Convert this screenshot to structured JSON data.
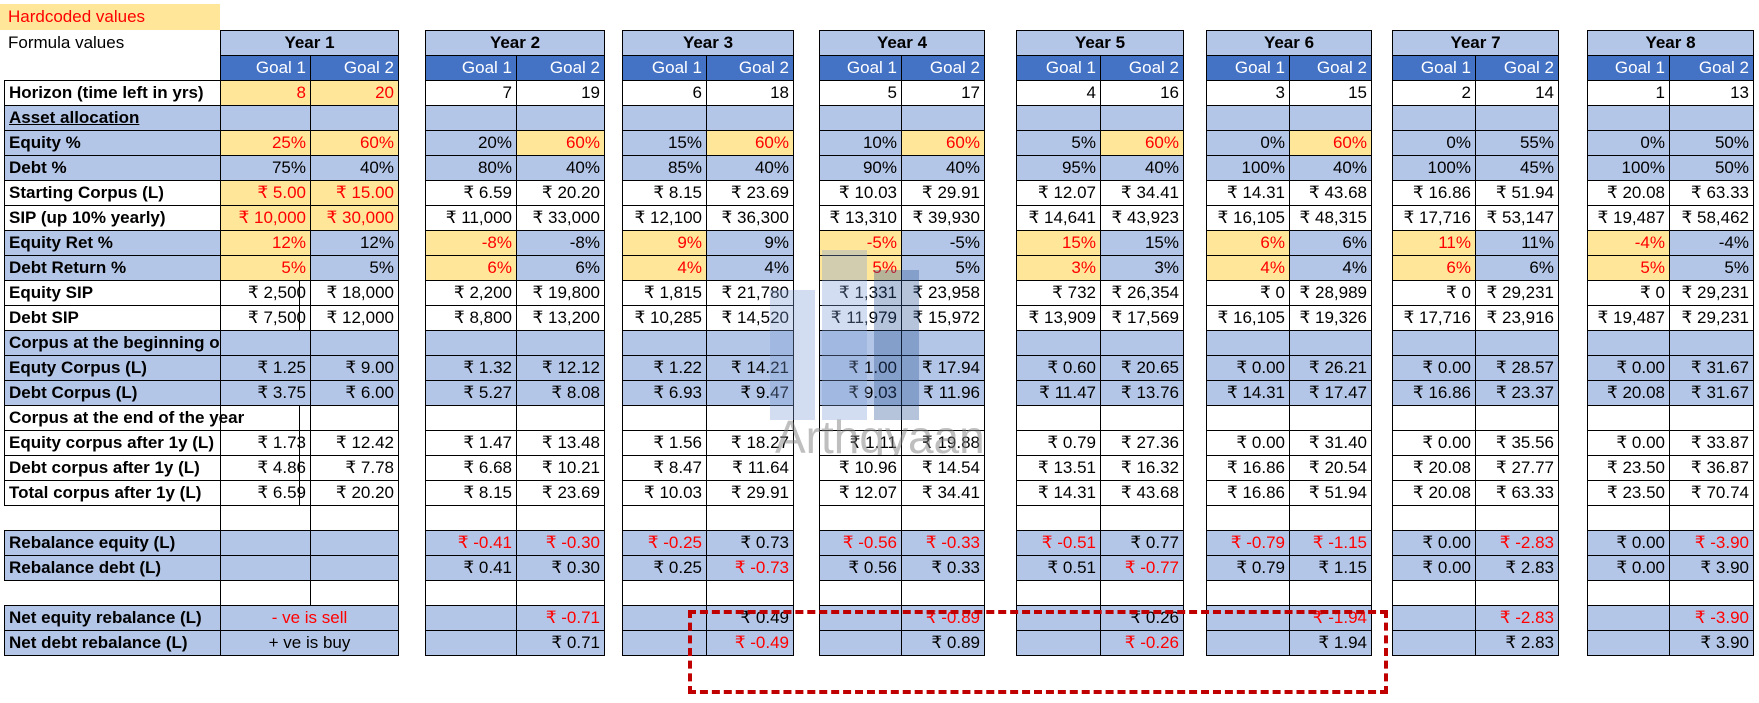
{
  "legend": {
    "hardcoded": "Hardcoded values",
    "formula": "Formula values"
  },
  "goal_headers": [
    "Goal 1",
    "Goal 2"
  ],
  "row_labels": [
    {
      "text": "Horizon (time left in yrs)",
      "style": "white"
    },
    {
      "text": "Asset allocation",
      "style": "blue-ul"
    },
    {
      "text": "Equity %",
      "style": "blue"
    },
    {
      "text": "Debt %",
      "style": "blue"
    },
    {
      "text": "Starting Corpus (L)",
      "style": "white"
    },
    {
      "text": "SIP (up 10% yearly)",
      "style": "white"
    },
    {
      "text": "Equity Ret %",
      "style": "blue"
    },
    {
      "text": "Debt Return %",
      "style": "blue"
    },
    {
      "text": "Equity SIP",
      "style": "white"
    },
    {
      "text": "Debt SIP",
      "style": "white"
    },
    {
      "text": "Corpus at the beginning of the year",
      "style": "blue"
    },
    {
      "text": "Equty Corpus (L)",
      "style": "blue"
    },
    {
      "text": "Debt Corpus (L)",
      "style": "blue"
    },
    {
      "text": "Corpus at the end  of the year",
      "style": "white"
    },
    {
      "text": "Equity corpus after 1y (L)",
      "style": "white"
    },
    {
      "text": "Debt corpus after 1y (L)",
      "style": "white"
    },
    {
      "text": "Total corpus after 1y (L)",
      "style": "white"
    },
    {
      "text": "",
      "style": "white"
    },
    {
      "text": "Rebalance equity (L)",
      "style": "blue"
    },
    {
      "text": "Rebalance debt (L)",
      "style": "blue"
    },
    {
      "text": "",
      "style": "white"
    },
    {
      "text": "Net equity rebalance (L)",
      "style": "blue"
    },
    {
      "text": "Net debt rebalance (L)",
      "style": "blue"
    }
  ],
  "year1_notes": {
    "sell": "- ve is sell",
    "buy": "+ ve is buy"
  },
  "years": [
    {
      "title": "Year 1",
      "g1": [
        "8",
        "",
        "25%",
        "75%",
        "₹ 5.00",
        "₹ 10,000",
        "12%",
        "5%",
        "₹ 2,500",
        "₹ 7,500",
        "",
        "₹ 1.25",
        "₹ 3.75",
        "",
        "₹ 1.73",
        "₹ 4.86",
        "₹ 6.59",
        "",
        "",
        "",
        "",
        "",
        ""
      ],
      "g2": [
        "20",
        "",
        "60%",
        "40%",
        "₹ 15.00",
        "₹ 30,000",
        "12%",
        "5%",
        "₹ 18,000",
        "₹ 12,000",
        "",
        "₹ 9.00",
        "₹ 6.00",
        "",
        "₹ 12.42",
        "₹ 7.78",
        "₹ 20.20",
        "",
        "",
        "",
        "",
        "",
        ""
      ],
      "hc1": [
        0,
        2,
        4,
        5,
        6,
        7
      ],
      "hc2": [
        0,
        2,
        4,
        5
      ],
      "neg1": [],
      "neg2": []
    },
    {
      "title": "Year 2",
      "g1": [
        "7",
        "",
        "20%",
        "80%",
        "₹ 6.59",
        "₹ 11,000",
        "-8%",
        "6%",
        "₹ 2,200",
        "₹ 8,800",
        "",
        "₹ 1.32",
        "₹ 5.27",
        "",
        "₹ 1.47",
        "₹ 6.68",
        "₹ 8.15",
        "",
        "₹ -0.41",
        "₹ 0.41",
        "",
        "",
        ""
      ],
      "g2": [
        "19",
        "",
        "60%",
        "40%",
        "₹ 20.20",
        "₹ 33,000",
        "-8%",
        "6%",
        "₹ 19,800",
        "₹ 13,200",
        "",
        "₹ 12.12",
        "₹ 8.08",
        "",
        "₹ 13.48",
        "₹ 10.21",
        "₹ 23.69",
        "",
        "₹ -0.30",
        "₹ 0.30",
        "",
        "₹ -0.71",
        "₹ 0.71"
      ],
      "hc1": [
        6,
        7
      ],
      "hc2": [
        2
      ],
      "neg1": [
        6,
        18
      ],
      "neg2": [
        18,
        21
      ]
    },
    {
      "title": "Year 3",
      "g1": [
        "6",
        "",
        "15%",
        "85%",
        "₹ 8.15",
        "₹ 12,100",
        "9%",
        "4%",
        "₹ 1,815",
        "₹ 10,285",
        "",
        "₹ 1.22",
        "₹ 6.93",
        "",
        "₹ 1.56",
        "₹ 8.47",
        "₹ 10.03",
        "",
        "₹ -0.25",
        "₹ 0.25",
        "",
        "",
        ""
      ],
      "g2": [
        "18",
        "",
        "60%",
        "40%",
        "₹ 23.69",
        "₹ 36,300",
        "9%",
        "4%",
        "₹ 21,780",
        "₹ 14,520",
        "",
        "₹ 14.21",
        "₹ 9.47",
        "",
        "₹ 18.27",
        "₹ 11.64",
        "₹ 29.91",
        "",
        "₹ 0.73",
        "₹ -0.73",
        "",
        "₹ 0.49",
        "₹ -0.49"
      ],
      "hc1": [
        6,
        7
      ],
      "hc2": [
        2
      ],
      "neg1": [
        18
      ],
      "neg2": [
        19,
        22
      ]
    },
    {
      "title": "Year 4",
      "g1": [
        "5",
        "",
        "10%",
        "90%",
        "₹ 10.03",
        "₹ 13,310",
        "-5%",
        "5%",
        "₹ 1,331",
        "₹ 11,979",
        "",
        "₹ 1.00",
        "₹ 9.03",
        "",
        "₹ 1.11",
        "₹ 10.96",
        "₹ 12.07",
        "",
        "₹ -0.56",
        "₹ 0.56",
        "",
        "",
        ""
      ],
      "g2": [
        "17",
        "",
        "60%",
        "40%",
        "₹ 29.91",
        "₹ 39,930",
        "-5%",
        "5%",
        "₹ 23,958",
        "₹ 15,972",
        "",
        "₹ 17.94",
        "₹ 11.96",
        "",
        "₹ 19.88",
        "₹ 14.54",
        "₹ 34.41",
        "",
        "₹ -0.33",
        "₹ 0.33",
        "",
        "₹ -0.89",
        "₹ 0.89"
      ],
      "hc1": [
        6,
        7
      ],
      "hc2": [
        2
      ],
      "neg1": [
        6,
        18
      ],
      "neg2": [
        18,
        21
      ]
    },
    {
      "title": "Year 5",
      "g1": [
        "4",
        "",
        "5%",
        "95%",
        "₹ 12.07",
        "₹ 14,641",
        "15%",
        "3%",
        "₹ 732",
        "₹ 13,909",
        "",
        "₹ 0.60",
        "₹ 11.47",
        "",
        "₹ 0.79",
        "₹ 13.51",
        "₹ 14.31",
        "",
        "₹ -0.51",
        "₹ 0.51",
        "",
        "",
        ""
      ],
      "g2": [
        "16",
        "",
        "60%",
        "40%",
        "₹ 34.41",
        "₹ 43,923",
        "15%",
        "3%",
        "₹ 26,354",
        "₹ 17,569",
        "",
        "₹ 20.65",
        "₹ 13.76",
        "",
        "₹ 27.36",
        "₹ 16.32",
        "₹ 43.68",
        "",
        "₹ 0.77",
        "₹ -0.77",
        "",
        "₹ 0.26",
        "₹ -0.26"
      ],
      "hc1": [
        6,
        7
      ],
      "hc2": [
        2
      ],
      "neg1": [
        18
      ],
      "neg2": [
        19,
        22
      ]
    },
    {
      "title": "Year 6",
      "g1": [
        "3",
        "",
        "0%",
        "100%",
        "₹ 14.31",
        "₹ 16,105",
        "6%",
        "4%",
        "₹ 0",
        "₹ 16,105",
        "",
        "₹ 0.00",
        "₹ 14.31",
        "",
        "₹ 0.00",
        "₹ 16.86",
        "₹ 16.86",
        "",
        "₹ -0.79",
        "₹ 0.79",
        "",
        "",
        ""
      ],
      "g2": [
        "15",
        "",
        "60%",
        "40%",
        "₹ 43.68",
        "₹ 48,315",
        "6%",
        "4%",
        "₹ 28,989",
        "₹ 19,326",
        "",
        "₹ 26.21",
        "₹ 17.47",
        "",
        "₹ 31.40",
        "₹ 20.54",
        "₹ 51.94",
        "",
        "₹ -1.15",
        "₹ 1.15",
        "",
        "₹ -1.94",
        "₹ 1.94"
      ],
      "hc1": [
        6,
        7
      ],
      "hc2": [
        2
      ],
      "neg1": [
        18
      ],
      "neg2": [
        18,
        21
      ]
    },
    {
      "title": "Year 7",
      "g1": [
        "2",
        "",
        "0%",
        "100%",
        "₹ 16.86",
        "₹ 17,716",
        "11%",
        "6%",
        "₹ 0",
        "₹ 17,716",
        "",
        "₹ 0.00",
        "₹ 16.86",
        "",
        "₹ 0.00",
        "₹ 20.08",
        "₹ 20.08",
        "",
        "₹ 0.00",
        "₹ 0.00",
        "",
        "",
        ""
      ],
      "g2": [
        "14",
        "",
        "55%",
        "45%",
        "₹ 51.94",
        "₹ 53,147",
        "11%",
        "6%",
        "₹ 29,231",
        "₹ 23,916",
        "",
        "₹ 28.57",
        "₹ 23.37",
        "",
        "₹ 35.56",
        "₹ 27.77",
        "₹ 63.33",
        "",
        "₹ -2.83",
        "₹ 2.83",
        "",
        "₹ -2.83",
        "₹ 2.83"
      ],
      "hc1": [
        6,
        7
      ],
      "hc2": [],
      "neg1": [],
      "neg2": [
        18,
        21
      ]
    },
    {
      "title": "Year 8",
      "g1": [
        "1",
        "",
        "0%",
        "100%",
        "₹ 20.08",
        "₹ 19,487",
        "-4%",
        "5%",
        "₹ 0",
        "₹ 19,487",
        "",
        "₹ 0.00",
        "₹ 20.08",
        "",
        "₹ 0.00",
        "₹ 23.50",
        "₹ 23.50",
        "",
        "₹ 0.00",
        "₹ 0.00",
        "",
        "",
        ""
      ],
      "g2": [
        "13",
        "",
        "50%",
        "50%",
        "₹ 63.33",
        "₹ 58,462",
        "-4%",
        "5%",
        "₹ 29,231",
        "₹ 29,231",
        "",
        "₹ 31.67",
        "₹ 31.67",
        "",
        "₹ 33.87",
        "₹ 36.87",
        "₹ 70.74",
        "",
        "₹ -3.90",
        "₹ 3.90",
        "",
        "₹ -3.90",
        "₹ 3.90"
      ],
      "hc1": [
        6,
        7
      ],
      "hc2": [],
      "neg1": [
        6
      ],
      "neg2": [
        18,
        21
      ]
    }
  ],
  "watermark": "Arthgyaan",
  "colors": {
    "hardcoded": "#ffe699",
    "formula_blue": "#b4c6e7",
    "goal_header": "#4472c4",
    "negative": "#ff0000",
    "highlight_box": "#c00000"
  }
}
